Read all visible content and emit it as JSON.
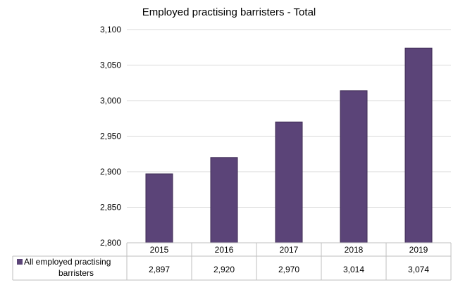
{
  "chart_data": {
    "type": "bar",
    "title": "Employed practising barristers - Total",
    "xlabel": "",
    "ylabel": "",
    "categories": [
      "2015",
      "2016",
      "2017",
      "2018",
      "2019"
    ],
    "categories_shown": [
      "2015",
      "2016",
      "2017",
      "2018",
      "2019"
    ],
    "series": [
      {
        "name_lines": [
          "All employed practising",
          "barristers"
        ],
        "values": [
          2897,
          2920,
          2970,
          3014,
          3074
        ],
        "value_labels": [
          "2,897",
          "2,920",
          "2,970",
          "3,014",
          "3,074"
        ],
        "color": "#5b4478"
      }
    ],
    "ylim": [
      2800,
      3100
    ],
    "yticks": [
      2800,
      2850,
      2900,
      2950,
      3000,
      3050,
      3100
    ],
    "ytick_labels": [
      "2,800",
      "2,850",
      "2,900",
      "2,950",
      "3,000",
      "3,050",
      "3,100"
    ],
    "grid": true,
    "legend": "data-table"
  }
}
